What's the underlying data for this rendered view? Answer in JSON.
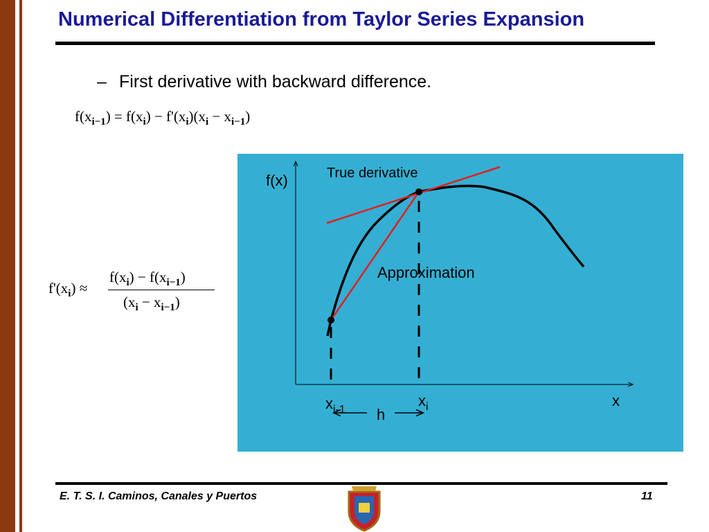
{
  "title": "Numerical Differentiation from Taylor Series Expansion",
  "bullet": "First derivative with backward difference.",
  "equation_1": [
    "f(x",
    "i−1",
    ") = f(x",
    "i",
    ") − f'(x",
    "i",
    ")(x",
    "i",
    " − x",
    "i−1",
    ")"
  ],
  "equation_2": {
    "left": [
      "f'(x",
      "i",
      ") ≈"
    ],
    "numerator": [
      "f(x",
      "i",
      ") − f(x",
      "i−1",
      ")"
    ],
    "denominator": [
      "(x",
      "i",
      " − x",
      "i−1",
      ")"
    ]
  },
  "diagram": {
    "y_label": "f(x)",
    "tangent_label": "True derivative",
    "secant_label": "Approximation",
    "x_label": "x",
    "x_prev": [
      "x",
      "i-1"
    ],
    "x_curr": [
      "x",
      "i"
    ],
    "step_label": "h"
  },
  "footer": {
    "institution": "E. T. S. I. Caminos, Canales y Puertos",
    "page": "11"
  }
}
